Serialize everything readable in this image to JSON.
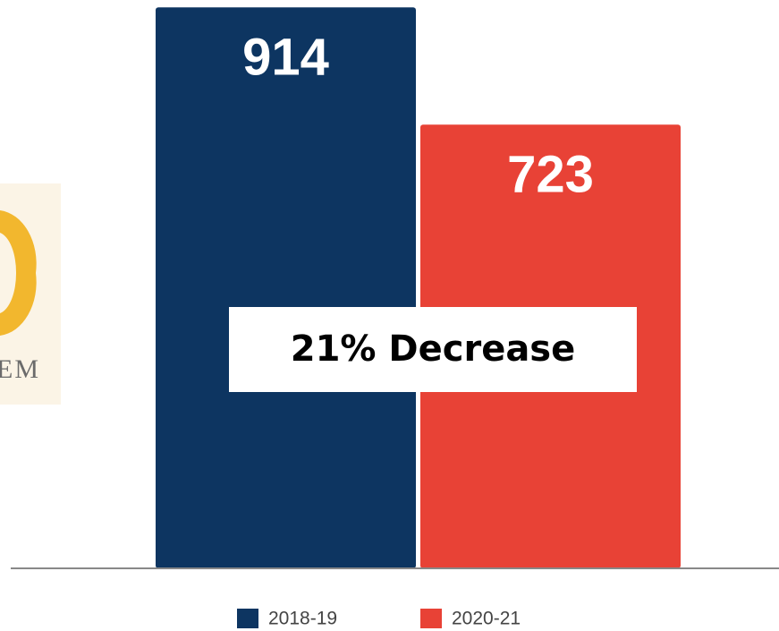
{
  "chart_data": {
    "type": "bar",
    "categories": [
      null
    ],
    "series": [
      {
        "name": "2018-19",
        "color": "#0d3561",
        "values": [
          914
        ]
      },
      {
        "name": "2020-21",
        "color": "#e84236",
        "values": [
          723
        ]
      }
    ],
    "ylim": [
      0,
      926
    ],
    "annotation": "21% Decrease",
    "legend": "bottom"
  },
  "logo": {
    "text": "EM"
  }
}
